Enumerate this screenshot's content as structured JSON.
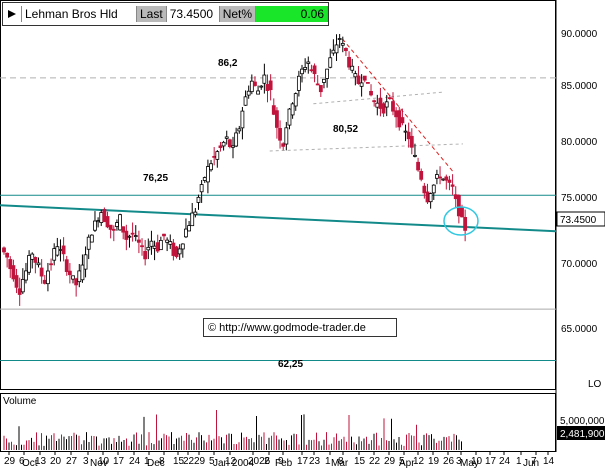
{
  "header": {
    "symbol": "Lehman Bros Hld",
    "last_label": "Last",
    "last_value": "73.4500",
    "net_label": "Net%",
    "net_value": "0.06"
  },
  "watermark": "© http://www.godmode-trader.de",
  "price_axis": {
    "labels": [
      "90.0000",
      "85.0000",
      "80.0000",
      "75.0000",
      "70.0000",
      "65.0000"
    ],
    "current": "73.4500",
    "scale_mark": "LO"
  },
  "volume_axis": {
    "title": "Volume",
    "labels": [
      "5,000,000"
    ],
    "current": "2,481,900"
  },
  "x_axis": {
    "day_labels": [
      "29",
      "6",
      "13",
      "20",
      "27",
      "3",
      "10",
      "17",
      "24",
      "1",
      "8",
      "15",
      "22",
      "29",
      "5",
      "12",
      "2026",
      "2",
      "9",
      "17",
      "23",
      "1",
      "8",
      "15",
      "22",
      "29",
      "5",
      "12",
      "19",
      "26",
      "3",
      "10",
      "17",
      "24",
      "1",
      "7",
      "14"
    ],
    "month_labels": [
      "Oct",
      "Nov",
      "Dec",
      "Jan 2004",
      "Feb",
      "Mar",
      "Apr",
      "May",
      "Jun"
    ]
  },
  "annotations": {
    "level_86": "86,2",
    "level_80": "80,52",
    "level_76": "76,25",
    "level_62": "62,25"
  },
  "colors": {
    "up_candle": "#000000",
    "down_candle": "#c0143c",
    "trend_line": "#138a8a",
    "support_line": "#138a8a",
    "resistance_line": "#e02020",
    "dashed_line": "#b0b0b0",
    "highlight_circle": "#30c8e0",
    "net_bg": "#19e629"
  },
  "chart_data": {
    "type": "candlestick",
    "title": "Lehman Bros Hld",
    "x_range": [
      "2003-09-29",
      "2004-06-14"
    ],
    "ylim": [
      61.5,
      93.5
    ],
    "price_scale_ticks": [
      90,
      85,
      80,
      75,
      70,
      65
    ],
    "horizontal_levels": [
      86.2,
      80.52,
      76.25,
      62.25
    ],
    "trendlines": [
      {
        "name": "long support",
        "from": [
          "2003-09-29",
          75.4
        ],
        "to": [
          "2004-06-14",
          73.2
        ]
      },
      {
        "name": "downtrend resistance",
        "from": [
          "2004-03-08",
          89.5
        ],
        "to": [
          "2004-04-30",
          78.3
        ]
      },
      {
        "name": "dashed upper",
        "from": [
          "2004-02-23",
          84.0
        ],
        "to": [
          "2004-04-26",
          85.0
        ]
      },
      {
        "name": "dashed lower",
        "from": [
          "2004-02-02",
          80.0
        ],
        "to": [
          "2004-05-05",
          80.6
        ]
      }
    ],
    "last_close": 73.45,
    "closes": [
      71.0,
      69.5,
      68.2,
      69.8,
      71.4,
      70.2,
      69.0,
      70.5,
      72.1,
      71.0,
      69.6,
      68.7,
      70.1,
      72.4,
      73.8,
      74.9,
      73.9,
      73.1,
      74.3,
      72.6,
      73.0,
      72.1,
      71.2,
      72.4,
      71.8,
      72.8,
      72.0,
      71.0,
      72.5,
      73.9,
      75.0,
      76.8,
      78.5,
      79.4,
      80.2,
      81.0,
      80.1,
      82.0,
      84.5,
      85.9,
      85.1,
      86.3,
      85.0,
      82.1,
      80.6,
      83.2,
      85.0,
      86.8,
      87.6,
      86.4,
      85.2,
      86.9,
      88.3,
      89.6,
      88.4,
      86.8,
      85.8,
      86.4,
      84.7,
      84.0,
      83.6,
      84.2,
      83.1,
      82.0,
      81.2,
      79.4,
      77.8,
      76.0,
      77.1,
      78.0,
      77.4,
      76.8,
      74.9,
      73.45
    ],
    "volume": {
      "scale_ticks": [
        5000000
      ],
      "last": 2481900
    }
  }
}
